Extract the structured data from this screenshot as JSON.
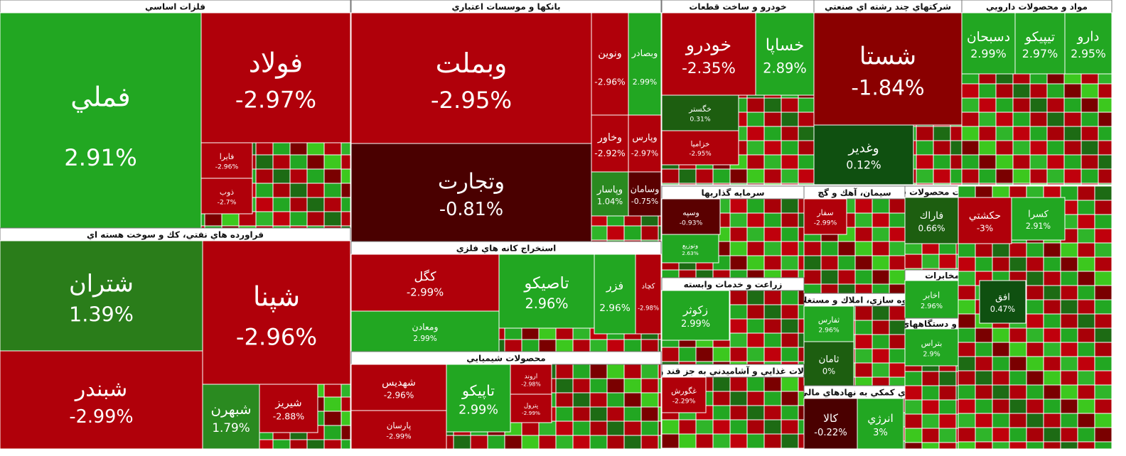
{
  "sectors": [
    {
      "title": "فلزات اساسي",
      "tiles": [
        {
          "name": "فملي",
          "change": "2.91%",
          "color": "#22a722"
        },
        {
          "name": "فولاد",
          "change": "-2.97%",
          "color": "#b0000a"
        },
        {
          "name": "فايرا",
          "change": "-2.96%",
          "color": "#b0000a"
        },
        {
          "name": "ذوب",
          "change": "-2.7%",
          "color": "#b0000a"
        }
      ]
    },
    {
      "title": "فراورده هاي نفتي، كك و سوخت هسته اي",
      "tiles": [
        {
          "name": "شتران",
          "change": "1.39%",
          "color": "#2a7d1a"
        },
        {
          "name": "شبندر",
          "change": "-2.99%",
          "color": "#b0000a"
        },
        {
          "name": "شپنا",
          "change": "-2.96%",
          "color": "#b0000a"
        },
        {
          "name": "شبهرن",
          "change": "1.79%",
          "color": "#2a8a20"
        },
        {
          "name": "شيريز",
          "change": "-2.88%",
          "color": "#b0000a"
        }
      ]
    },
    {
      "title": "بانكها و موسسات اعتباري",
      "tiles": [
        {
          "name": "وبملت",
          "change": "-2.95%",
          "color": "#b0000a"
        },
        {
          "name": "وتجارت",
          "change": "-0.81%",
          "color": "#4a0000"
        },
        {
          "name": "ونوين",
          "change": "-2.96%",
          "color": "#b0000a"
        },
        {
          "name": "وبصادر",
          "change": "2.99%",
          "color": "#22a722"
        },
        {
          "name": "وخاور",
          "change": "-2.92%",
          "color": "#b0000a"
        },
        {
          "name": "وپارس",
          "change": "-2.97%",
          "color": "#b0000a"
        },
        {
          "name": "وپاسار",
          "change": "1.04%",
          "color": "#2a8a20"
        },
        {
          "name": "وسامان",
          "change": "-0.75%",
          "color": "#5a0000"
        }
      ]
    },
    {
      "title": "استخراج كانه هاي فلزي",
      "tiles": [
        {
          "name": "كگل",
          "change": "-2.99%",
          "color": "#b0000a"
        },
        {
          "name": "ومعادن",
          "change": "2.99%",
          "color": "#22a722"
        },
        {
          "name": "تاصيكو",
          "change": "2.96%",
          "color": "#22a722"
        },
        {
          "name": "فزر",
          "change": "2.96%",
          "color": "#22a722"
        },
        {
          "name": "كچاد",
          "change": "-2.98%",
          "color": "#b0000a"
        }
      ]
    },
    {
      "title": "محصولات شيميايي",
      "tiles": [
        {
          "name": "شهديس",
          "change": "-2.96%",
          "color": "#b0000a"
        },
        {
          "name": "پارسان",
          "change": "-2.99%",
          "color": "#b0000a"
        },
        {
          "name": "تاپيكو",
          "change": "2.99%",
          "color": "#22a722"
        },
        {
          "name": "اروند",
          "change": "-2.98%",
          "color": "#b0000a"
        },
        {
          "name": "پترول",
          "change": "-2.99%",
          "color": "#b0000a"
        }
      ]
    },
    {
      "title": "خودرو و ساخت قطعات",
      "tiles": [
        {
          "name": "خودرو",
          "change": "-2.35%",
          "color": "#b0000a"
        },
        {
          "name": "خساپا",
          "change": "2.89%",
          "color": "#22a722"
        },
        {
          "name": "خگستر",
          "change": "0.31%",
          "color": "#1d5e10"
        },
        {
          "name": "خزاميا",
          "change": "-2.95%",
          "color": "#b0000a"
        }
      ]
    },
    {
      "title": "شركتهاي چند رشته اي صنعتي",
      "tiles": [
        {
          "name": "شستا",
          "change": "-1.84%",
          "color": "#8a0000"
        },
        {
          "name": "وغدير",
          "change": "0.12%",
          "color": "#0f5010"
        }
      ]
    },
    {
      "title": "مواد و محصولات دارويي",
      "tiles": [
        {
          "name": "دسبحان",
          "change": "2.99%",
          "color": "#22a722"
        },
        {
          "name": "تيپيكو",
          "change": "2.97%",
          "color": "#22a722"
        },
        {
          "name": "دارو",
          "change": "2.95%",
          "color": "#22a722"
        }
      ]
    },
    {
      "title": "سرمايه گذاريها",
      "tiles": [
        {
          "name": "وسپه",
          "change": "-0.93%",
          "color": "#5a0000"
        },
        {
          "name": "وتوزيع",
          "change": "2.63%",
          "color": "#22a722"
        }
      ]
    },
    {
      "title": "سيمان، آهك و گچ",
      "tiles": [
        {
          "name": "سفار",
          "change": "-2.99%",
          "color": "#b0000a"
        }
      ]
    },
    {
      "title": "زراعت و خدمات وابسته",
      "tiles": [
        {
          "name": "زكوثر",
          "change": "2.99%",
          "color": "#22a722"
        }
      ]
    },
    {
      "title": "انبوه سازي، املاك و مستغلات",
      "tiles": [
        {
          "name": "ثفارس",
          "change": "2.96%",
          "color": "#22a722"
        },
        {
          "name": "ثامان",
          "change": "0%",
          "color": "#1d5e10"
        }
      ]
    },
    {
      "title": "محصولات غذايي و آشاميدني به جز قند و شكر",
      "tiles": [
        {
          "name": "غگورش",
          "change": "-2.29%",
          "color": "#b0000a"
        }
      ]
    },
    {
      "title": "فعاليتهاي كمكي به نهادهاي مالي واسط",
      "tiles": [
        {
          "name": "كالا",
          "change": "-0.22%",
          "color": "#4a0000"
        },
        {
          "name": "انرژي",
          "change": "3%",
          "color": "#22a722"
        }
      ]
    },
    {
      "title": "ساخت محصولات فلزي",
      "tiles": [
        {
          "name": "فاراك",
          "change": "0.66%",
          "color": "#1d5e10"
        }
      ]
    },
    {
      "title": "مخابرات",
      "tiles": [
        {
          "name": "اخابر",
          "change": "2.96%",
          "color": "#22a722"
        }
      ]
    },
    {
      "title": "ماشين آلات و دستگاههاي برقي",
      "tiles": [
        {
          "name": "بتراس",
          "change": "2.9%",
          "color": "#22a722"
        }
      ]
    },
    {
      "tiles": [
        {
          "name": "حكشتي",
          "change": "-3%",
          "color": "#b0000a"
        },
        {
          "name": "كسرا",
          "change": "2.91%",
          "color": "#22a722"
        },
        {
          "name": "افق",
          "change": "0.47%",
          "color": "#0f5010"
        }
      ]
    }
  ]
}
